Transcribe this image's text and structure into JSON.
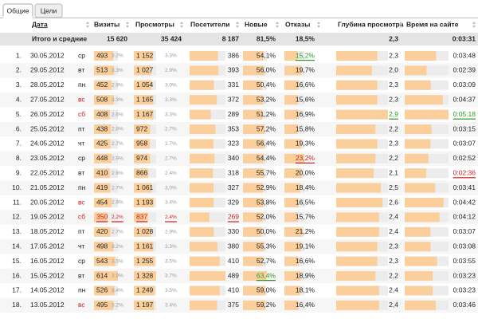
{
  "tabs": [
    "Общие",
    "Цели"
  ],
  "table": {
    "headers": [
      "Дата",
      "Визиты",
      "Просмотры",
      "Посетители",
      "Новые",
      "Отказы",
      "Глубина просмотра",
      "Время на сайте"
    ],
    "totals": [
      "Итого и средние",
      "15 620",
      "35 424",
      "8 187",
      "81,5%",
      "18,5%",
      "2,3",
      "0:03:31"
    ],
    "rows": [
      [
        "1.",
        "30.05.2012",
        "ср",
        "493",
        "3.2%",
        "1 152",
        "3.3%",
        "386",
        "54,1%",
        "15,2%",
        "2,3",
        "0:03:48"
      ],
      [
        "2.",
        "29.05.2012",
        "вт",
        "513",
        "3.3%",
        "1 027",
        "2.9%",
        "393",
        "56,0%",
        "19,7%",
        "2,0",
        "0:02:39"
      ],
      [
        "3.",
        "28.05.2012",
        "пн",
        "452",
        "2.9%",
        "1 054",
        "3.0%",
        "331",
        "50,4%",
        "16,6%",
        "2,3",
        "0:03:09"
      ],
      [
        "4.",
        "27.05.2012",
        "вс",
        "508",
        "3.3%",
        "1 165",
        "3.3%",
        "372",
        "53,2%",
        "15,6%",
        "2,3",
        "0:04:37"
      ],
      [
        "5.",
        "26.05.2012",
        "сб",
        "408",
        "2.6%",
        "1 167",
        "3.3%",
        "289",
        "51,2%",
        "16,9%",
        "2,9",
        "0:05:18"
      ],
      [
        "6.",
        "25.05.2012",
        "пт",
        "438",
        "2.8%",
        "972",
        "2.7%",
        "353",
        "57,2%",
        "15,8%",
        "2,2",
        "0:03:15"
      ],
      [
        "7.",
        "24.05.2012",
        "чт",
        "425",
        "2.7%",
        "958",
        "2.7%",
        "323",
        "56,4%",
        "19,3%",
        "2,3",
        "0:03:07"
      ],
      [
        "8.",
        "23.05.2012",
        "ср",
        "448",
        "2.9%",
        "974",
        "2.7%",
        "340",
        "54,4%",
        "23,2%",
        "2,2",
        "0:02:52"
      ],
      [
        "9.",
        "22.05.2012",
        "вт",
        "410",
        "2.6%",
        "866",
        "2.4%",
        "318",
        "55,7%",
        "20,0%",
        "2,1",
        "0:02:36"
      ],
      [
        "10.",
        "21.05.2012",
        "пн",
        "419",
        "2.7%",
        "1 061",
        "3.0%",
        "327",
        "52,9%",
        "18,4%",
        "2,5",
        "0:03:41"
      ],
      [
        "11.",
        "20.05.2012",
        "вс",
        "454",
        "2.9%",
        "1 193",
        "3.4%",
        "329",
        "53,8%",
        "16,5%",
        "2,6",
        "0:04:42"
      ],
      [
        "12.",
        "19.05.2012",
        "сб",
        "350",
        "2.2%",
        "837",
        "2.4%",
        "269",
        "52,0%",
        "15,7%",
        "2,4",
        "0:04:12"
      ],
      [
        "13.",
        "18.05.2012",
        "пт",
        "420",
        "2.7%",
        "1 028",
        "2.9%",
        "330",
        "50,0%",
        "21,2%",
        "2,4",
        "0:03:07"
      ],
      [
        "14.",
        "17.05.2012",
        "чт",
        "498",
        "3.2%",
        "1 161",
        "3.3%",
        "380",
        "55,3%",
        "19,1%",
        "2,3",
        "0:03:08"
      ],
      [
        "15.",
        "16.05.2012",
        "ср",
        "543",
        "3.5%",
        "1 255",
        "3.5%",
        "410",
        "52,7%",
        "16,6%",
        "2,3",
        "0:03:55"
      ],
      [
        "16.",
        "15.05.2012",
        "вт",
        "614",
        "3.9%",
        "1 328",
        "3.7%",
        "489",
        "63,4%",
        "18,9%",
        "2,2",
        "0:03:23"
      ],
      [
        "17.",
        "14.05.2012",
        "пн",
        "526",
        "3.4%",
        "1 249",
        "3.5%",
        "410",
        "59,0%",
        "18,1%",
        "2,4",
        "0:03:23"
      ],
      [
        "18.",
        "13.05.2012",
        "вс",
        "495",
        "3.2%",
        "1 197",
        "3.4%",
        "375",
        "59,2%",
        "16,4%",
        "2,4",
        "0:03:46"
      ]
    ],
    "highlights": [
      {
        "row": 0,
        "col": 9,
        "color": "#2a9a2a",
        "underline": true
      },
      {
        "row": 3,
        "col": 2,
        "color": "#d02020",
        "underline": false
      },
      {
        "row": 4,
        "col": 2,
        "color": "#d02020",
        "underline": false
      },
      {
        "row": 4,
        "col": 10,
        "color": "#2a9a2a",
        "underline": true
      },
      {
        "row": 4,
        "col": 11,
        "color": "#2a9a2a",
        "underline": true
      },
      {
        "row": 7,
        "col": 9,
        "color": "#d02020",
        "underline": true
      },
      {
        "row": 8,
        "col": 11,
        "color": "#d02020",
        "underline": true
      },
      {
        "row": 10,
        "col": 2,
        "color": "#d02020",
        "underline": false
      },
      {
        "row": 11,
        "col": 2,
        "color": "#d02020",
        "underline": false
      },
      {
        "row": 11,
        "col": 3,
        "color": "#d02020",
        "underline": true
      },
      {
        "row": 11,
        "col": 4,
        "color": "#d02020",
        "underline": true
      },
      {
        "row": 11,
        "col": 5,
        "color": "#d02020",
        "underline": true
      },
      {
        "row": 11,
        "col": 6,
        "color": "#d02020",
        "underline": true
      },
      {
        "row": 11,
        "col": 7,
        "color": "#d02020",
        "underline": true
      },
      {
        "row": 15,
        "col": 8,
        "color": "#2a9a2a",
        "underline": true
      },
      {
        "row": 17,
        "col": 2,
        "color": "#d02020",
        "underline": false
      }
    ]
  }
}
